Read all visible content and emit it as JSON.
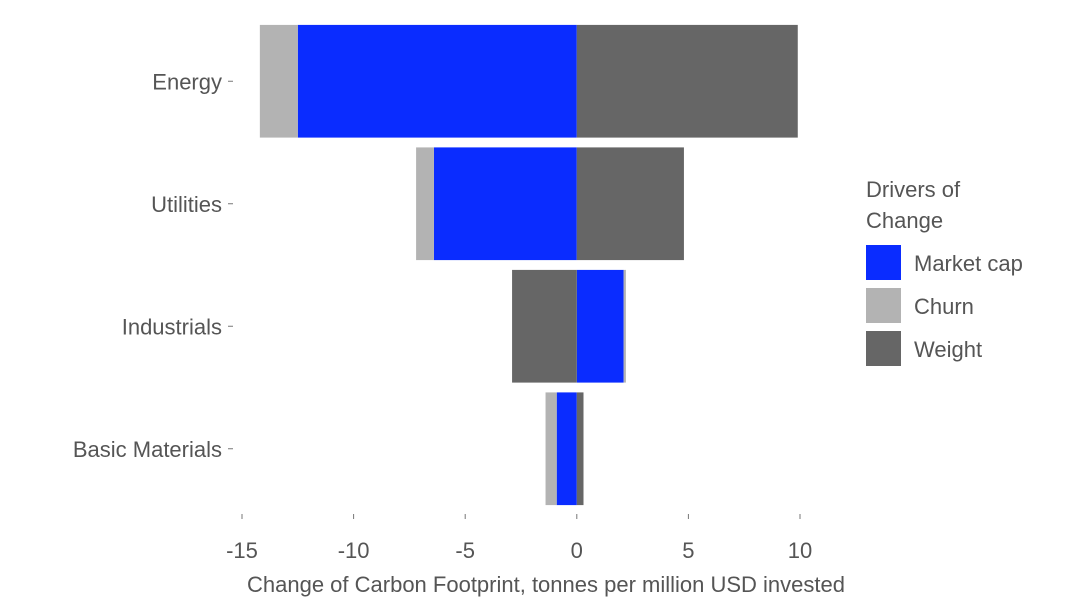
{
  "chart_data": {
    "type": "bar",
    "orientation": "horizontal",
    "stacked": "diverging",
    "categories": [
      "Energy",
      "Utilities",
      "Industrials",
      "Basic Materials"
    ],
    "series": [
      {
        "name": "Market cap",
        "color": "#0a2cff",
        "values": [
          -12.5,
          -6.4,
          2.1,
          -0.9
        ]
      },
      {
        "name": "Churn",
        "color": "#b3b3b3",
        "values": [
          -1.7,
          -0.8,
          0.1,
          -0.5
        ]
      },
      {
        "name": "Weight",
        "color": "#666666",
        "values": [
          9.9,
          4.8,
          -2.9,
          0.3
        ]
      }
    ],
    "xlabel": "Change of Carbon Footprint, tonnes per million USD invested",
    "ylabel": "",
    "xlim": [
      -15,
      10
    ],
    "xticks": [
      -15,
      -10,
      -5,
      0,
      5,
      10
    ],
    "xtick_labels": [
      "-15",
      "-10",
      "-5",
      "0",
      "5",
      "10"
    ],
    "grid": false,
    "legend": {
      "title_lines": [
        "Drivers of",
        "Change"
      ],
      "placement": "right",
      "entries": [
        "Market cap",
        "Churn",
        "Weight"
      ]
    }
  }
}
